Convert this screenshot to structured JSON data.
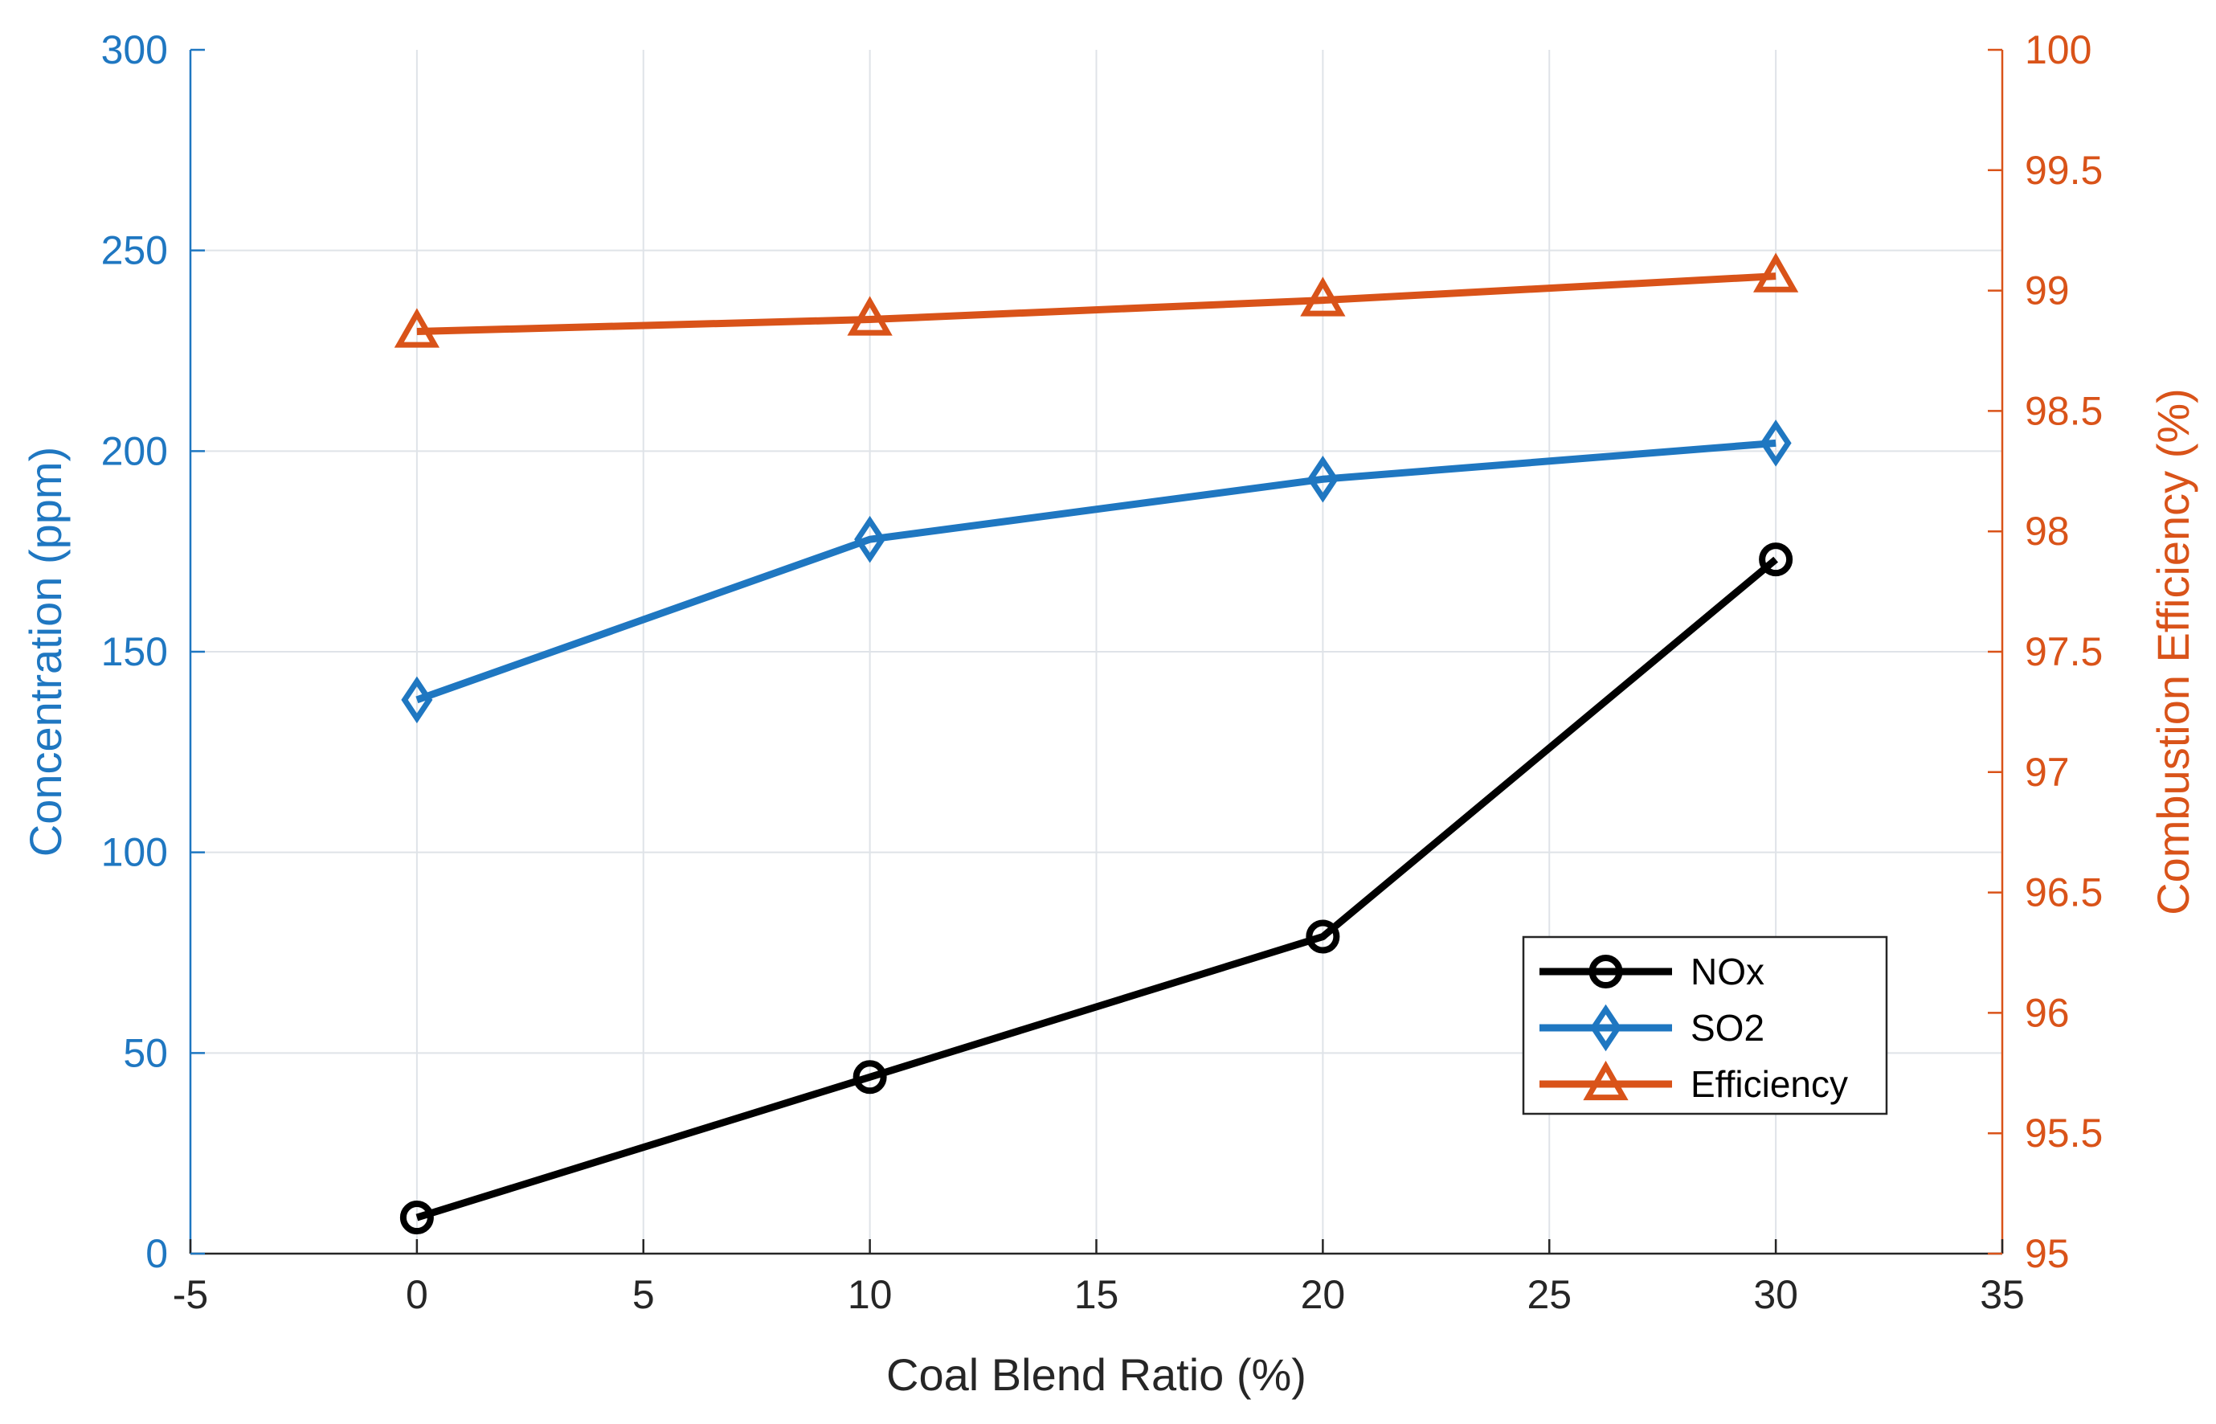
{
  "chart_data": {
    "type": "line",
    "title": "",
    "xlabel": "Coal Blend Ratio (%)",
    "ylabel_left": "Concentration (ppm)",
    "ylabel_right": "Combustion Efficiency (%)",
    "xlim": [
      -5,
      35
    ],
    "ylim_left": [
      0,
      300
    ],
    "ylim_right": [
      95,
      100
    ],
    "x_ticks": [
      -5,
      0,
      5,
      10,
      15,
      20,
      25,
      30,
      35
    ],
    "y_left_ticks": [
      0,
      50,
      100,
      150,
      200,
      250,
      300
    ],
    "y_right_ticks": [
      95,
      95.5,
      96,
      96.5,
      97,
      97.5,
      98,
      98.5,
      99,
      99.5,
      100
    ],
    "grid": true,
    "legend_position": "lower-right",
    "x": [
      0,
      10,
      20,
      30
    ],
    "series": [
      {
        "name": "NOx",
        "axis": "left",
        "marker": "circle",
        "color": "#000000",
        "values": [
          9,
          44,
          79,
          173
        ]
      },
      {
        "name": "SO2",
        "axis": "left",
        "marker": "diamond",
        "color": "#1f77c1",
        "values": [
          138,
          178,
          193,
          202
        ]
      },
      {
        "name": "Efficiency",
        "axis": "right",
        "marker": "triangle",
        "color": "#d95319",
        "values": [
          98.83,
          98.88,
          98.96,
          99.06
        ]
      }
    ],
    "colors": {
      "left_axis": "#1f77c1",
      "right_axis": "#d95319",
      "grid": "#dfe3e8"
    }
  }
}
